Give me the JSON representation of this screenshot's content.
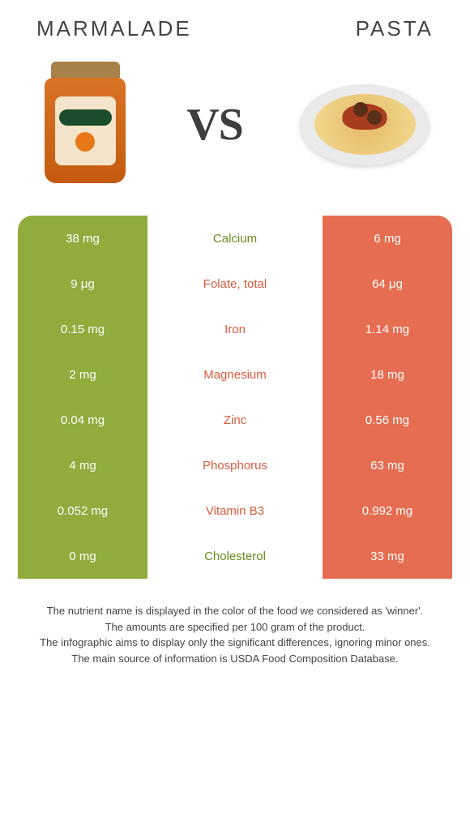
{
  "header": {
    "left": "Marmalade",
    "right": "Pasta"
  },
  "vs": "VS",
  "colors": {
    "green": "#8fac3d",
    "orange": "#e66d51",
    "text_green": "#6a8a1f",
    "text_orange": "#d75b3f"
  },
  "rows": [
    {
      "left": "38 mg",
      "mid": "Calcium",
      "right": "6 mg",
      "winner": "left"
    },
    {
      "left": "9 μg",
      "mid": "Folate, total",
      "right": "64 μg",
      "winner": "right"
    },
    {
      "left": "0.15 mg",
      "mid": "Iron",
      "right": "1.14 mg",
      "winner": "right"
    },
    {
      "left": "2 mg",
      "mid": "Magnesium",
      "right": "18 mg",
      "winner": "right"
    },
    {
      "left": "0.04 mg",
      "mid": "Zinc",
      "right": "0.56 mg",
      "winner": "right"
    },
    {
      "left": "4 mg",
      "mid": "Phosphorus",
      "right": "63 mg",
      "winner": "right"
    },
    {
      "left": "0.052 mg",
      "mid": "Vitamin B3",
      "right": "0.992 mg",
      "winner": "right"
    },
    {
      "left": "0 mg",
      "mid": "Cholesterol",
      "right": "33 mg",
      "winner": "left"
    }
  ],
  "footer": [
    "The nutrient name is displayed in the color of the food we considered as 'winner'.",
    "The amounts are specified per 100 gram of the product.",
    "The infographic aims to display only the significant differences, ignoring minor ones.",
    "The main source of information is USDA Food Composition Database."
  ]
}
